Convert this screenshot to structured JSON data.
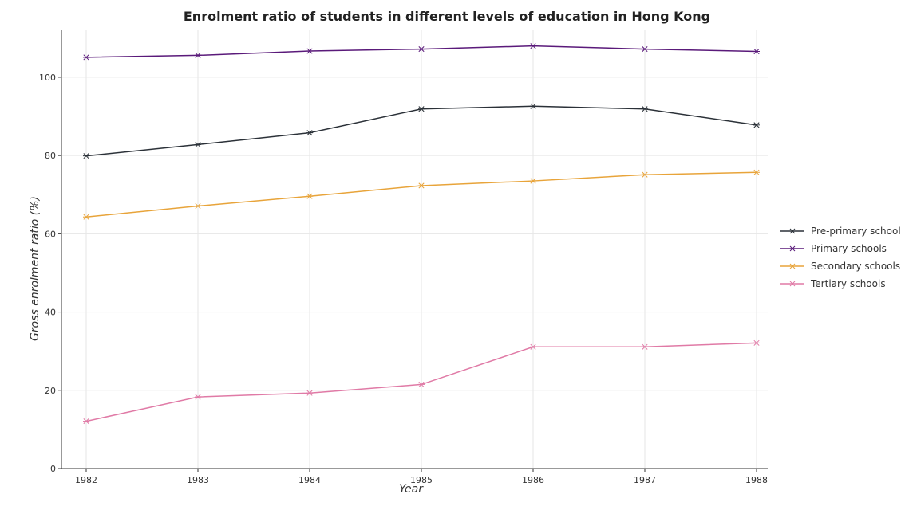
{
  "chart_data": {
    "type": "line",
    "title": "Enrolment ratio of students in different levels of education in Hong Kong",
    "xlabel": "Year",
    "ylabel": "Gross enrolment ratio (%)",
    "x": [
      "1982",
      "1983",
      "1984",
      "1985",
      "1986",
      "1987",
      "1988"
    ],
    "yticks": [
      "0",
      "20",
      "40",
      "60",
      "80",
      "100"
    ],
    "ylim": [
      0,
      112
    ],
    "grid": true,
    "legend_position": "right",
    "series": [
      {
        "name": "Pre-primary schools",
        "color": "#2b3138",
        "values": [
          79.9,
          82.8,
          85.8,
          91.9,
          92.6,
          91.9,
          87.8
        ]
      },
      {
        "name": "Primary schools",
        "color": "#5a1a7a",
        "values": [
          105.1,
          105.6,
          106.7,
          107.2,
          108.0,
          107.2,
          106.6
        ]
      },
      {
        "name": "Secondary schools",
        "color": "#e8a43a",
        "values": [
          64.3,
          67.1,
          69.6,
          72.3,
          73.5,
          75.1,
          75.7
        ]
      },
      {
        "name": "Tertiary schools",
        "color": "#e07aa6",
        "values": [
          12.1,
          18.3,
          19.3,
          21.5,
          31.1,
          31.1,
          32.1
        ]
      }
    ]
  }
}
